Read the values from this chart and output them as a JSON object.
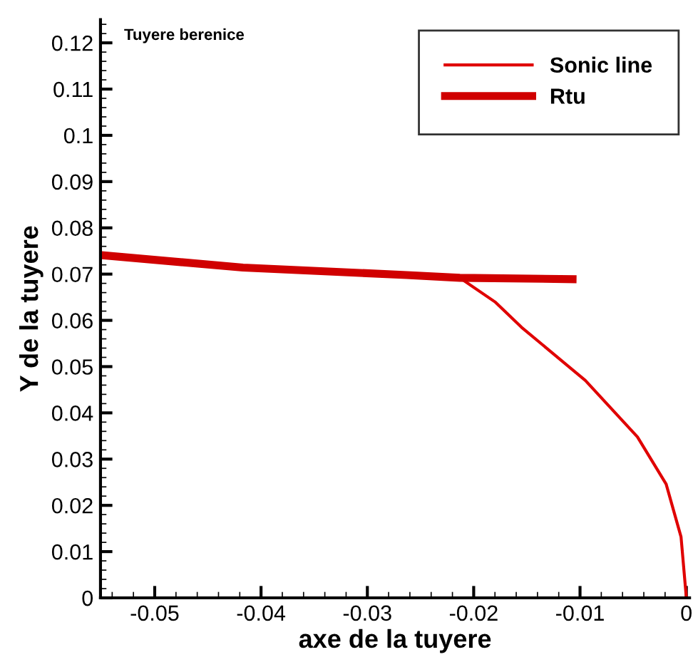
{
  "chart_data": {
    "type": "line",
    "xlabel": "axe de la tuyere",
    "ylabel": "Y de la tuyere",
    "annotations": [
      "Tuyere berenice"
    ],
    "series": [
      {
        "name": "Sonic line",
        "color": "#e00000",
        "x": [
          -0.0213,
          -0.018,
          -0.0155,
          -0.0095,
          -0.0046,
          -0.0019,
          -0.0005,
          0.0
        ],
        "values": [
          0.0692,
          0.064,
          0.0585,
          0.047,
          0.0348,
          0.0246,
          0.0132,
          0.0
        ]
      },
      {
        "name": "Rtu",
        "color": "#d00000",
        "x": [
          -0.055,
          -0.0417,
          -0.0263,
          -0.0213,
          -0.0107
        ],
        "values": [
          0.0741,
          0.0714,
          0.0698,
          0.0692,
          0.0689
        ]
      }
    ],
    "xlim": [
      -0.0551,
      0.0003
    ],
    "ylim": [
      0,
      0.125
    ],
    "xticks": [
      -0.05,
      -0.04,
      -0.03,
      -0.02,
      -0.01,
      0
    ],
    "yticks": [
      0,
      0.01,
      0.02,
      0.03,
      0.04,
      0.05,
      0.06,
      0.07,
      0.08,
      0.09,
      0.1,
      0.11,
      0.12
    ],
    "legend": "top right",
    "grid": false
  }
}
